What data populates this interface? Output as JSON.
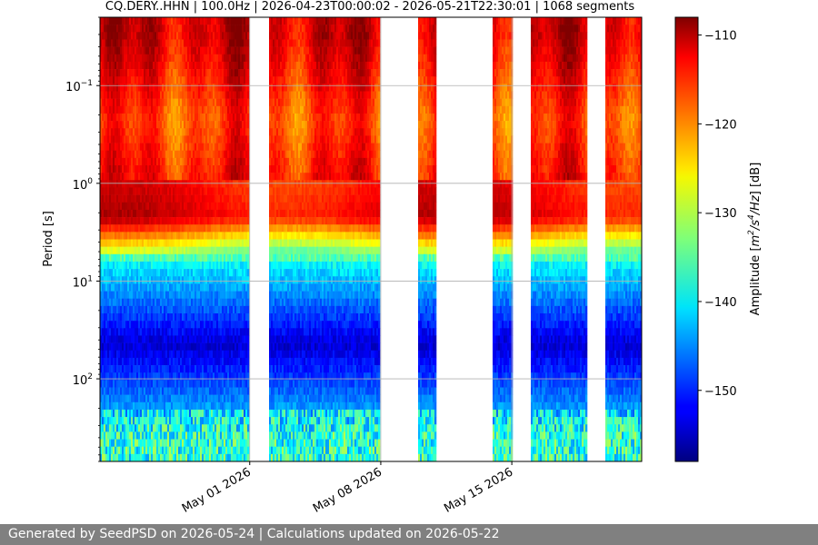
{
  "footer": {
    "text": "Generated by SeedPSD on 2026-05-24 | Calculations updated on 2026-05-22"
  },
  "colors": {
    "colormap": "jet",
    "gridline": "#b0b0b0",
    "footer_background": "#808080",
    "footer_text": "#ffffff"
  },
  "chart_data": {
    "type": "heatmap",
    "title": "CQ.DERY..HHN | 100.0Hz | 2026-04-23T00:00:02 - 2026-05-21T22:30:01 | 1068 segments",
    "xlabel": "",
    "ylabel": "Period [s]",
    "x_type": "date",
    "x_range": [
      "2026-04-23T00:00:02",
      "2026-05-21T22:30:01"
    ],
    "x_tick_labels": [
      {
        "date": "2026-05-01",
        "label": "May 01 2026"
      },
      {
        "date": "2026-05-08",
        "label": "May 08 2026"
      },
      {
        "date": "2026-05-15",
        "label": "May 15 2026"
      }
    ],
    "y_scale": "log",
    "y_inverted": true,
    "y_range_s": [
      0.02,
      700
    ],
    "y_ticks": [
      {
        "value": 0.1,
        "base": "10",
        "exp": "−1"
      },
      {
        "value": 1,
        "base": "10",
        "exp": "0"
      },
      {
        "value": 10,
        "base": "10",
        "exp": "1"
      },
      {
        "value": 100,
        "base": "10",
        "exp": "2"
      }
    ],
    "grid": true,
    "colorbar": {
      "label_prefix": "Amplitude [",
      "label_unit": "m",
      "label_sup1": "2",
      "label_unit2": "/s",
      "label_sup2": "4",
      "label_unit3": "/Hz",
      "label_suffix": "] [dB]",
      "range_db": [
        -158,
        -108
      ],
      "ticks": [
        -110,
        -120,
        -130,
        -140,
        -150
      ]
    },
    "data_gaps": [
      [
        "2026-05-01T00:00:00",
        "2026-05-02T00:00:00"
      ],
      [
        "2026-05-08T00:00:00",
        "2026-05-10T00:00:00"
      ],
      [
        "2026-05-11T00:00:00",
        "2026-05-14T00:00:00"
      ],
      [
        "2026-05-15T00:00:00",
        "2026-05-16T00:00:00"
      ],
      [
        "2026-05-19T00:00:00",
        "2026-05-20T00:00:00"
      ]
    ],
    "period_bands_db": [
      {
        "period_s": [
          0.02,
          0.05
        ],
        "level_db": -112,
        "note": "high-frequency noise (red/orange)"
      },
      {
        "period_s": [
          0.05,
          1.0
        ],
        "level_db": -118,
        "note": "orange/red, varies over time"
      },
      {
        "period_s": [
          1.0,
          5.0
        ],
        "level_db": -113,
        "note": "microseism peak (dark red)"
      },
      {
        "period_s": [
          5.0,
          10.0
        ],
        "level_db": -140,
        "note": "transition (cyan to blue)"
      },
      {
        "period_s": [
          10.0,
          200.0
        ],
        "level_db": -154,
        "note": "low noise (dark blue)"
      },
      {
        "period_s": [
          200.0,
          700.0
        ],
        "level_db": -140,
        "note": "long period (cyan/yellow streaks)"
      }
    ]
  }
}
